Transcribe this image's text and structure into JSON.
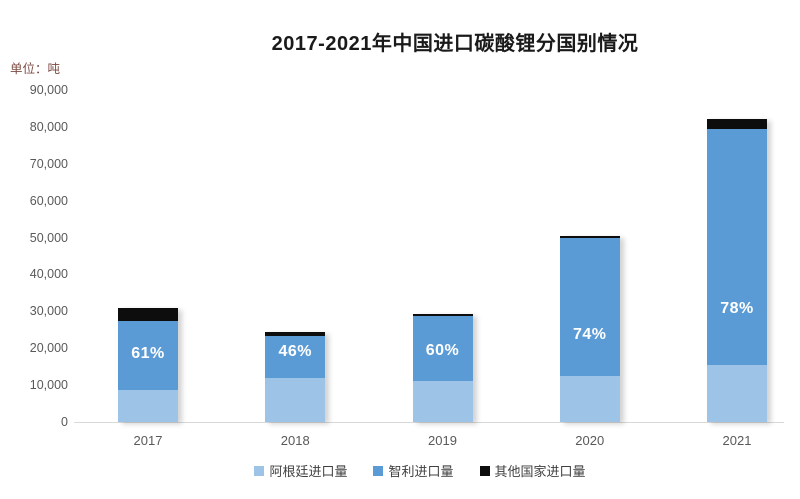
{
  "title": "2017-2021年中国进口碳酸锂分国别情况",
  "unit_label": "单位：吨",
  "chart_data": {
    "type": "bar",
    "stacked": true,
    "title": "2017-2021年中国进口碳酸锂分国别情况",
    "ylabel": "单位：吨",
    "categories": [
      "2017",
      "2018",
      "2019",
      "2020",
      "2021"
    ],
    "series": [
      {
        "name": "阿根廷进口量",
        "slug": "argentina",
        "color": "#9DC3E6",
        "values": [
          8700,
          12000,
          11000,
          12400,
          15500
        ]
      },
      {
        "name": "智利进口量",
        "slug": "chile",
        "color": "#5B9BD5",
        "values": [
          18800,
          11200,
          17600,
          37400,
          63800
        ]
      },
      {
        "name": "其他国家进口量",
        "slug": "other-countries",
        "color": "#0D0D0D",
        "values": [
          3500,
          1100,
          800,
          700,
          2800
        ]
      }
    ],
    "totals": [
      31000,
      24300,
      29400,
      50500,
      82100
    ],
    "pct_labels": {
      "series": "智利进口量",
      "labels": [
        "61%",
        "46%",
        "60%",
        "74%",
        "78%"
      ],
      "label_levels": [
        18400,
        19000,
        19200,
        23600,
        30600
      ]
    },
    "ylim": [
      0,
      90000
    ],
    "ytick_step": 10000,
    "ytick_labels": [
      "0",
      "10,000",
      "20,000",
      "30,000",
      "40,000",
      "50,000",
      "60,000",
      "70,000",
      "80,000",
      "90,000"
    ],
    "grid": false,
    "legend_position": "bottom"
  }
}
